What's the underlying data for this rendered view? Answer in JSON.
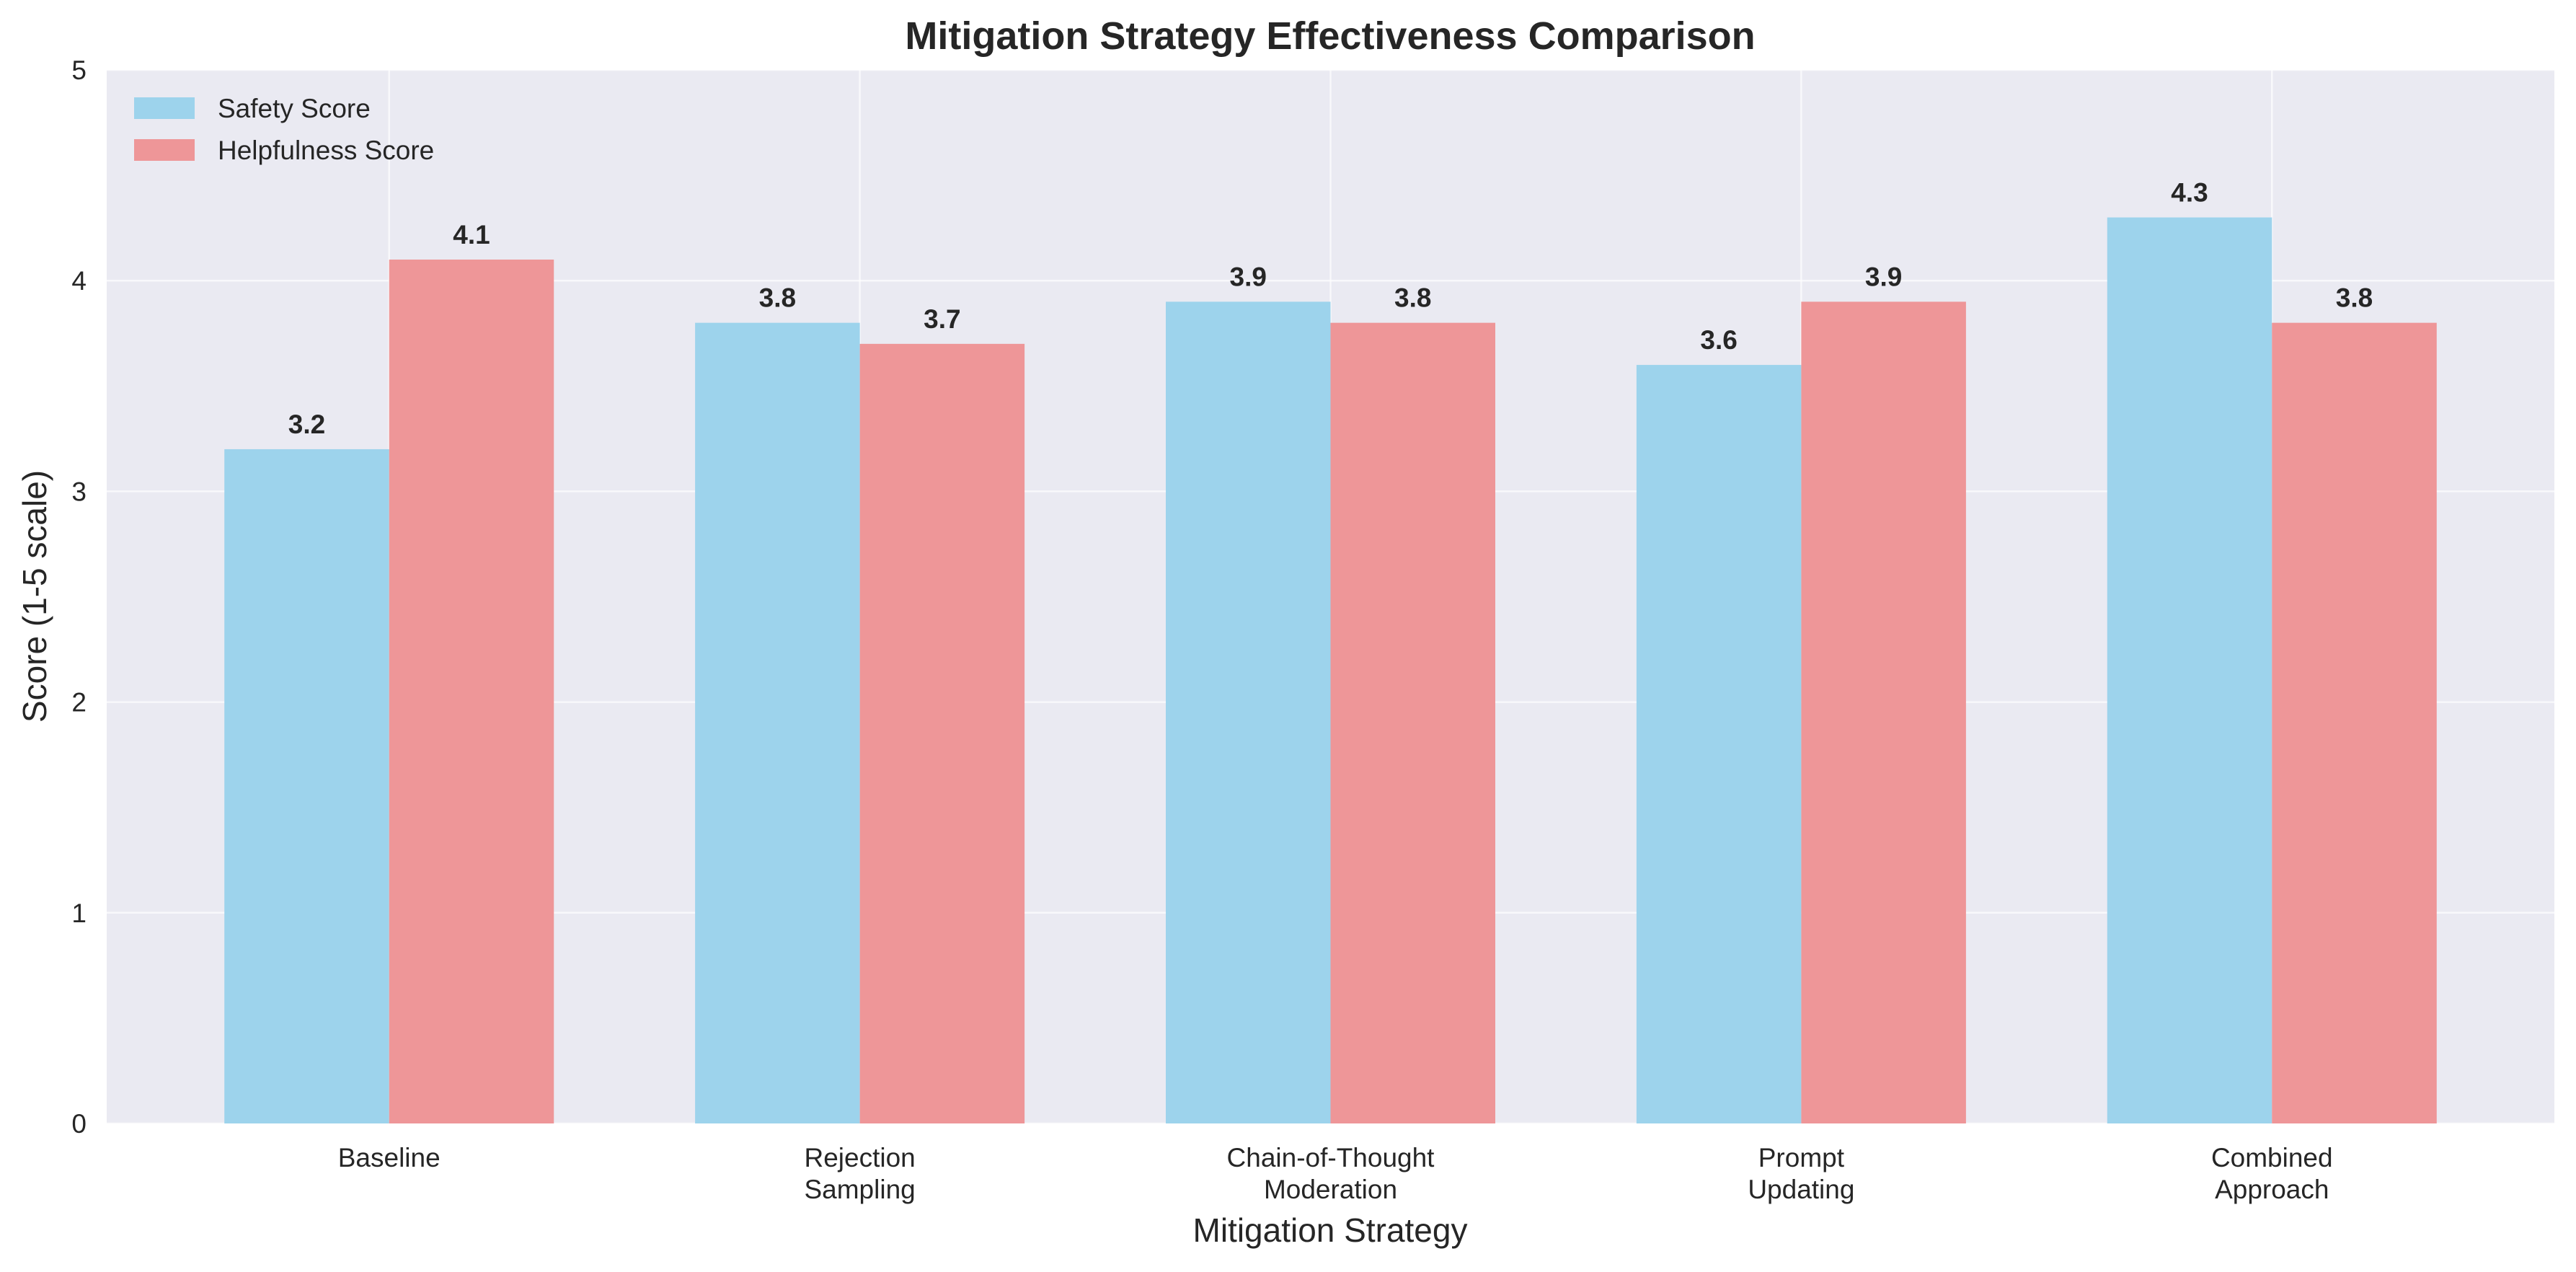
{
  "chart_data": {
    "type": "bar",
    "title": "Mitigation Strategy Effectiveness Comparison",
    "xlabel": "Mitigation Strategy",
    "ylabel": "Score (1-5 scale)",
    "ylim": [
      0,
      5
    ],
    "yticks": [
      "0",
      "1",
      "2",
      "3",
      "4",
      "5"
    ],
    "grid": true,
    "legend_position": "top-left",
    "background_color": "#EAEAF2",
    "categories": [
      [
        "Baseline"
      ],
      [
        "Rejection",
        "Sampling"
      ],
      [
        "Chain-of-Thought",
        "Moderation"
      ],
      [
        "Prompt",
        "Updating"
      ],
      [
        "Combined",
        "Approach"
      ]
    ],
    "series": [
      {
        "name": "Safety Score",
        "color": "#9DD3EC",
        "values": [
          3.2,
          3.8,
          3.9,
          3.6,
          4.3
        ],
        "labels": [
          "3.2",
          "3.8",
          "3.9",
          "3.6",
          "4.3"
        ]
      },
      {
        "name": "Helpfulness Score",
        "color": "#EE9698",
        "values": [
          4.1,
          3.7,
          3.8,
          3.9,
          3.8
        ],
        "labels": [
          "4.1",
          "3.7",
          "3.8",
          "3.9",
          "3.8"
        ]
      }
    ]
  }
}
